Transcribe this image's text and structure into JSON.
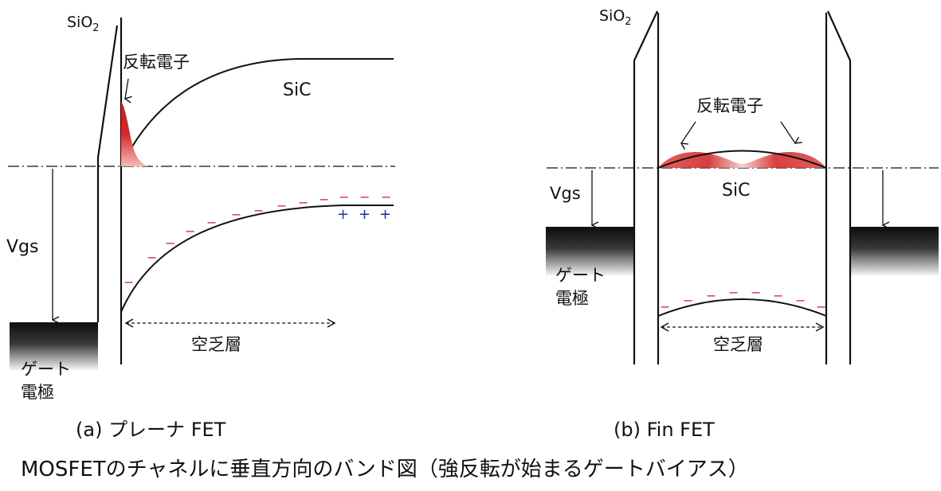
{
  "colors": {
    "line": "#111111",
    "electron_red": "#d42a2a",
    "electron_red_light": "#ef8d8d",
    "plus_blue": "#1c2e9e",
    "gate_dark": "#101010"
  },
  "panel_a": {
    "oxide_label": "SiO",
    "oxide_subscript": "2",
    "inversion_label": "反転電子",
    "semiconductor_label": "SiC",
    "vgs_label": "Vgs",
    "gate_label_line1": "ゲート",
    "gate_label_line2": "電極",
    "depletion_label": "空乏層",
    "negative_charge_symbol": "−",
    "positive_charge_symbol": "+",
    "caption": "(a) プレーナ FET"
  },
  "panel_b": {
    "oxide_label": "SiO",
    "oxide_subscript": "2",
    "inversion_label": "反転電子",
    "semiconductor_label": "SiC",
    "vgs_label": "Vgs",
    "gate_label_line1": "ゲート",
    "gate_label_line2": "電極",
    "depletion_label": "空乏層",
    "negative_charge_symbol": "−",
    "caption": "(b) Fin FET"
  },
  "figure_title": "MOSFETのチャネルに垂直方向のバンド図（強反転が始まるゲートバイアス）"
}
